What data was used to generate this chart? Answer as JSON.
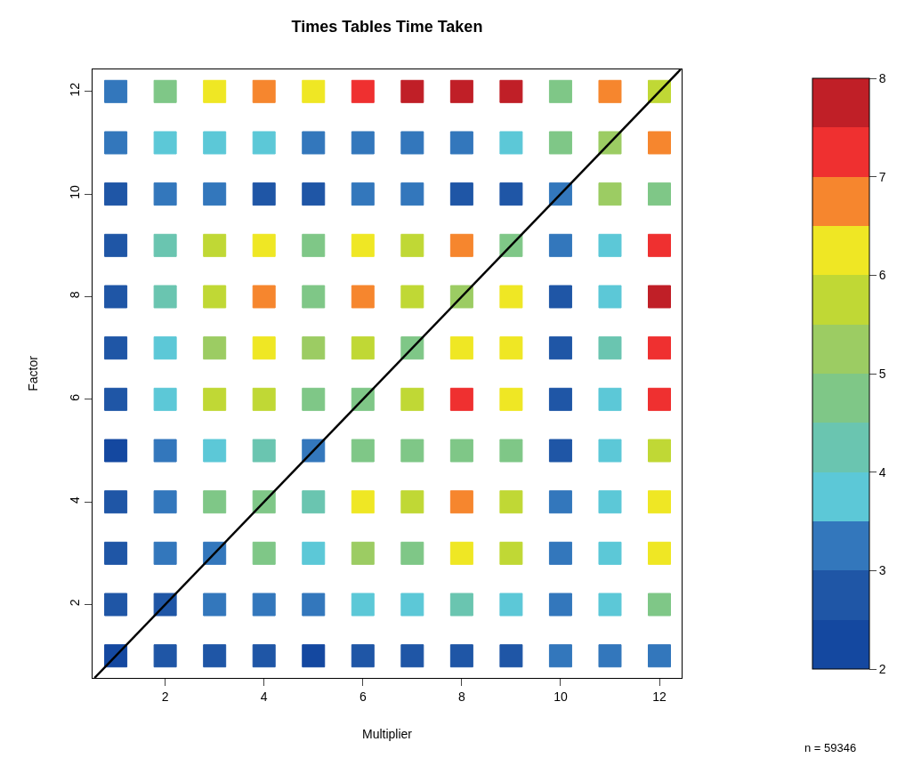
{
  "chart_data": {
    "type": "scatter",
    "title": "Times Tables Time Taken",
    "xlabel": "Multiplier",
    "ylabel": "Factor",
    "xlim": [
      0.53,
      12.45
    ],
    "ylim": [
      0.57,
      12.43
    ],
    "xticks": [
      2,
      4,
      6,
      8,
      10,
      12
    ],
    "yticks": [
      2,
      4,
      6,
      8,
      10,
      12
    ],
    "colors": [
      "#1448a0",
      "#1f56a6",
      "#3377bc",
      "#5cc8d7",
      "#6ac5b0",
      "#7fc787",
      "#9ccc63",
      "#c0d835",
      "#efe724",
      "#f6862e",
      "#ef3030",
      "#c01f27"
    ],
    "clim": [
      2,
      8
    ],
    "cticks": [
      2,
      3,
      4,
      5,
      6,
      7,
      8
    ],
    "series": [
      {
        "type": "scatter",
        "marker": "square",
        "colors": [
          "#3377bc",
          "#7fc787",
          "#efe724",
          "#f6862e",
          "#efe724",
          "#ef3030",
          "#c01f27",
          "#c01f27",
          "#c01f27",
          "#7fc787",
          "#f6862e",
          "#c0d835",
          "#3377bc",
          "#5cc8d7",
          "#5cc8d7",
          "#5cc8d7",
          "#3377bc",
          "#3377bc",
          "#3377bc",
          "#3377bc",
          "#5cc8d7",
          "#7fc787",
          "#9ccc63",
          "#f6862e",
          "#1f56a6",
          "#3377bc",
          "#3377bc",
          "#1f56a6",
          "#1f56a6",
          "#3377bc",
          "#3377bc",
          "#1f56a6",
          "#1f56a6",
          "#3377bc",
          "#9ccc63",
          "#7fc787",
          "#1f56a6",
          "#6ac5b0",
          "#c0d835",
          "#efe724",
          "#7fc787",
          "#efe724",
          "#c0d835",
          "#f6862e",
          "#7fc787",
          "#3377bc",
          "#5cc8d7",
          "#ef3030",
          "#1f56a6",
          "#6ac5b0",
          "#c0d835",
          "#f6862e",
          "#7fc787",
          "#f6862e",
          "#c0d835",
          "#9ccc63",
          "#efe724",
          "#1f56a6",
          "#5cc8d7",
          "#c01f27",
          "#1f56a6",
          "#5cc8d7",
          "#9ccc63",
          "#efe724",
          "#9ccc63",
          "#c0d835",
          "#7fc787",
          "#efe724",
          "#efe724",
          "#1f56a6",
          "#6ac5b0",
          "#ef3030",
          "#1f56a6",
          "#5cc8d7",
          "#c0d835",
          "#c0d835",
          "#7fc787",
          "#7fc787",
          "#c0d835",
          "#ef3030",
          "#efe724",
          "#1f56a6",
          "#5cc8d7",
          "#ef3030",
          "#1448a0",
          "#3377bc",
          "#5cc8d7",
          "#6ac5b0",
          "#3377bc",
          "#7fc787",
          "#7fc787",
          "#7fc787",
          "#7fc787",
          "#1f56a6",
          "#5cc8d7",
          "#c0d835",
          "#1f56a6",
          "#3377bc",
          "#7fc787",
          "#7fc787",
          "#6ac5b0",
          "#efe724",
          "#c0d835",
          "#f6862e",
          "#c0d835",
          "#3377bc",
          "#5cc8d7",
          "#efe724",
          "#1f56a6",
          "#3377bc",
          "#3377bc",
          "#7fc787",
          "#5cc8d7",
          "#9ccc63",
          "#7fc787",
          "#efe724",
          "#c0d835",
          "#3377bc",
          "#5cc8d7",
          "#efe724",
          "#1f56a6",
          "#1f56a6",
          "#3377bc",
          "#3377bc",
          "#3377bc",
          "#5cc8d7",
          "#5cc8d7",
          "#6ac5b0",
          "#5cc8d7",
          "#3377bc",
          "#5cc8d7",
          "#7fc787",
          "#1448a0",
          "#1f56a6",
          "#1f56a6",
          "#1f56a6",
          "#1448a0",
          "#1f56a6",
          "#1f56a6",
          "#1f56a6",
          "#1f56a6",
          "#3377bc",
          "#3377bc",
          "#3377bc"
        ],
        "x": [
          1,
          2,
          3,
          4,
          5,
          6,
          7,
          8,
          9,
          10,
          11,
          12,
          1,
          2,
          3,
          4,
          5,
          6,
          7,
          8,
          9,
          10,
          11,
          12,
          1,
          2,
          3,
          4,
          5,
          6,
          7,
          8,
          9,
          10,
          11,
          12,
          1,
          2,
          3,
          4,
          5,
          6,
          7,
          8,
          9,
          10,
          11,
          12,
          1,
          2,
          3,
          4,
          5,
          6,
          7,
          8,
          9,
          10,
          11,
          12,
          1,
          2,
          3,
          4,
          5,
          6,
          7,
          8,
          9,
          10,
          11,
          12,
          1,
          2,
          3,
          4,
          5,
          6,
          7,
          8,
          9,
          10,
          11,
          12,
          1,
          2,
          3,
          4,
          5,
          6,
          7,
          8,
          9,
          10,
          11,
          12,
          1,
          2,
          3,
          4,
          5,
          6,
          7,
          8,
          9,
          10,
          11,
          12,
          1,
          2,
          3,
          4,
          5,
          6,
          7,
          8,
          9,
          10,
          11,
          12,
          1,
          2,
          3,
          4,
          5,
          6,
          7,
          8,
          9,
          10,
          11,
          12,
          1,
          2,
          3,
          4,
          5,
          6,
          7,
          8,
          9,
          10,
          11,
          12
        ],
        "values": [
          12,
          12,
          12,
          12,
          12,
          12,
          12,
          12,
          12,
          12,
          12,
          12,
          11,
          11,
          11,
          11,
          11,
          11,
          11,
          11,
          11,
          11,
          11,
          11,
          10,
          10,
          10,
          10,
          10,
          10,
          10,
          10,
          10,
          10,
          10,
          10,
          9,
          9,
          9,
          9,
          9,
          9,
          9,
          9,
          9,
          9,
          9,
          9,
          8,
          8,
          8,
          8,
          8,
          8,
          8,
          8,
          8,
          8,
          8,
          8,
          7,
          7,
          7,
          7,
          7,
          7,
          7,
          7,
          7,
          7,
          7,
          7,
          6,
          6,
          6,
          6,
          6,
          6,
          6,
          6,
          6,
          6,
          6,
          6,
          5,
          5,
          5,
          5,
          5,
          5,
          5,
          5,
          5,
          5,
          5,
          5,
          4,
          4,
          4,
          4,
          4,
          4,
          4,
          4,
          4,
          4,
          4,
          4,
          3,
          3,
          3,
          3,
          3,
          3,
          3,
          3,
          3,
          3,
          3,
          3,
          2,
          2,
          2,
          2,
          2,
          2,
          2,
          2,
          2,
          2,
          2,
          2,
          1,
          1,
          1,
          1,
          1,
          1,
          1,
          1,
          1,
          1,
          1,
          1
        ],
        "cvalues": [
          3.25,
          4.75,
          6.25,
          6.75,
          6.25,
          7.25,
          7.75,
          7.75,
          7.75,
          4.75,
          6.75,
          5.75,
          3.25,
          3.75,
          3.75,
          3.75,
          3.25,
          3.25,
          3.25,
          3.25,
          3.75,
          4.75,
          5.25,
          6.75,
          2.75,
          3.25,
          3.25,
          2.75,
          2.75,
          3.25,
          3.25,
          2.75,
          2.75,
          3.25,
          5.25,
          4.75,
          2.75,
          4.25,
          5.75,
          6.25,
          4.75,
          6.25,
          5.75,
          6.75,
          4.75,
          3.25,
          3.75,
          7.25,
          2.75,
          4.25,
          5.75,
          6.75,
          4.75,
          6.75,
          5.75,
          5.25,
          6.25,
          2.75,
          3.75,
          7.75,
          2.75,
          3.75,
          5.25,
          6.25,
          5.25,
          5.75,
          4.75,
          6.25,
          6.25,
          2.75,
          4.25,
          7.25,
          2.75,
          3.75,
          5.75,
          5.75,
          4.75,
          4.75,
          5.75,
          7.25,
          6.25,
          2.75,
          3.75,
          7.25,
          2.25,
          3.25,
          3.75,
          4.25,
          3.25,
          4.75,
          4.75,
          4.75,
          4.75,
          2.75,
          3.75,
          5.75,
          2.75,
          3.25,
          4.75,
          4.75,
          4.25,
          6.25,
          5.75,
          6.75,
          5.75,
          3.25,
          3.75,
          6.25,
          2.75,
          3.25,
          3.25,
          4.75,
          3.75,
          5.25,
          4.75,
          6.25,
          5.75,
          3.25,
          3.75,
          6.25,
          2.75,
          2.75,
          3.25,
          3.25,
          3.25,
          3.75,
          3.75,
          4.25,
          3.75,
          3.25,
          3.75,
          4.75,
          2.25,
          2.75,
          2.75,
          2.75,
          2.25,
          2.75,
          2.75,
          2.75,
          2.75,
          3.25,
          3.25,
          3.25
        ]
      },
      {
        "type": "line",
        "color": "#000000",
        "x": [
          0.57,
          12.43
        ],
        "values": [
          0.57,
          12.43
        ]
      }
    ],
    "annotations": [
      "n = 59346"
    ]
  }
}
